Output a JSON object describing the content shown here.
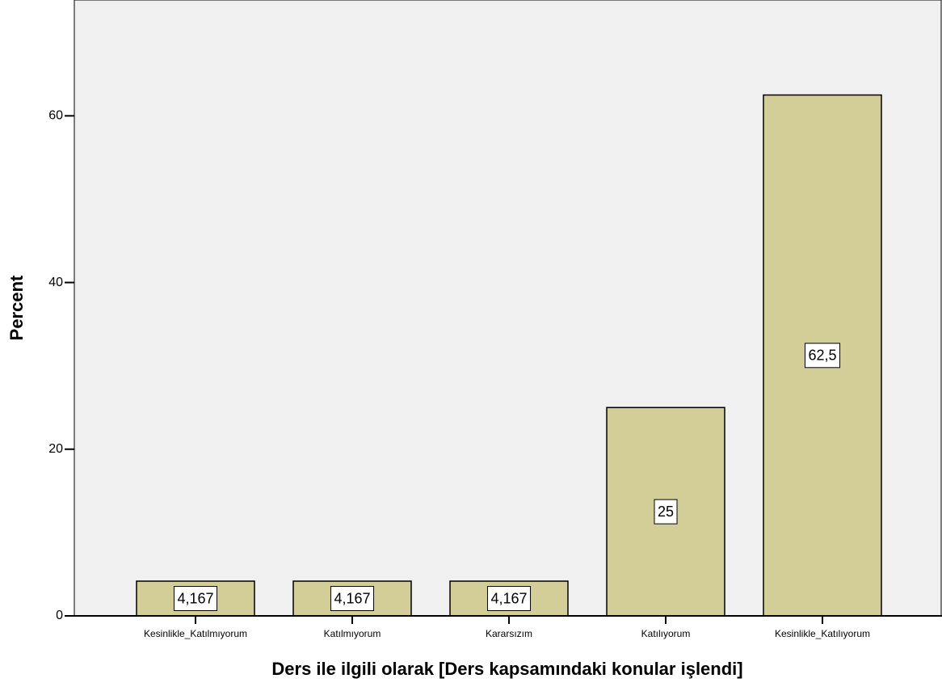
{
  "chart_data": {
    "type": "bar",
    "x_label": "Ders ile ilgili olarak [Ders kapsamındaki konular işlendi]",
    "y_label": "Percent",
    "categories": [
      "Kesinlikle_Katılmıyorum",
      "Katılmıyorum",
      "Kararsızım",
      "Katılıyorum",
      "Kesinlikle_Katılıyorum"
    ],
    "values": [
      4.167,
      4.167,
      4.167,
      25,
      62.5
    ],
    "value_labels": [
      "4,167",
      "4,167",
      "4,167",
      "25",
      "62,5"
    ],
    "color": "#d3ce97",
    "ylim": [
      0,
      73.9
    ],
    "yticks": [
      0,
      20,
      40,
      60
    ],
    "grid": false
  }
}
